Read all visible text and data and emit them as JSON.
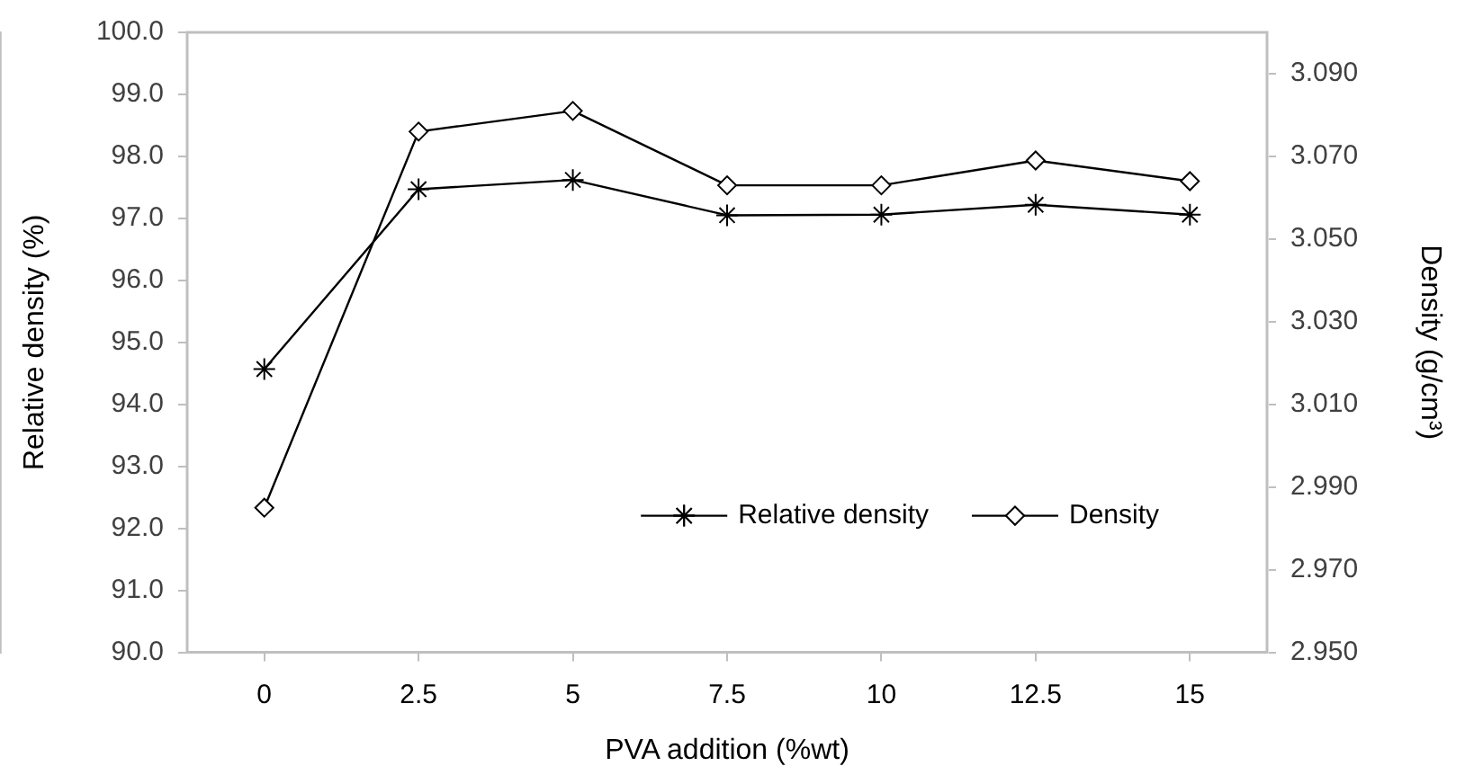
{
  "chart_data": {
    "type": "line",
    "xlabel": "PVA addition (%wt)",
    "ylabel": "Relative density (%)",
    "y2label": "Density (g/cm³)",
    "categories": [
      "0",
      "2.5",
      "5",
      "7.5",
      "10",
      "12.5",
      "15"
    ],
    "series": [
      {
        "name": "Relative density",
        "color": "#000000",
        "marker": "cross",
        "values": [
          94.57,
          97.47,
          97.62,
          97.05,
          97.06,
          97.22,
          97.06
        ]
      },
      {
        "name": "Density",
        "color": "#000000",
        "marker": "diamond",
        "axis": "y2",
        "values": [
          2.985,
          3.076,
          3.081,
          3.063,
          3.063,
          3.069,
          3.064
        ]
      }
    ],
    "ylim": [
      90,
      100
    ],
    "yticks": [
      {
        "value": 90,
        "label": "90.0"
      },
      {
        "value": 91,
        "label": "91.0"
      },
      {
        "value": 92,
        "label": "92.0"
      },
      {
        "value": 93,
        "label": "93.0"
      },
      {
        "value": 94,
        "label": "94.0"
      },
      {
        "value": 95,
        "label": "95.0"
      },
      {
        "value": 96,
        "label": "96.0"
      },
      {
        "value": 97,
        "label": "97.0"
      },
      {
        "value": 98,
        "label": "98.0"
      },
      {
        "value": 99,
        "label": "99.0"
      },
      {
        "value": 100,
        "label": "100.0"
      }
    ],
    "y2lim": [
      2.95,
      3.1
    ],
    "y2ticks": [
      {
        "value": 2.95,
        "label": "2.950"
      },
      {
        "value": 2.97,
        "label": "2.970"
      },
      {
        "value": 2.99,
        "label": "2.990"
      },
      {
        "value": 3.01,
        "label": "3.010"
      },
      {
        "value": 3.03,
        "label": "3.030"
      },
      {
        "value": 3.05,
        "label": "3.050"
      },
      {
        "value": 3.07,
        "label": "3.070"
      },
      {
        "value": 3.09,
        "label": "3.090"
      }
    ],
    "grid": false,
    "legend": "bottom right",
    "line_style": "solid"
  }
}
